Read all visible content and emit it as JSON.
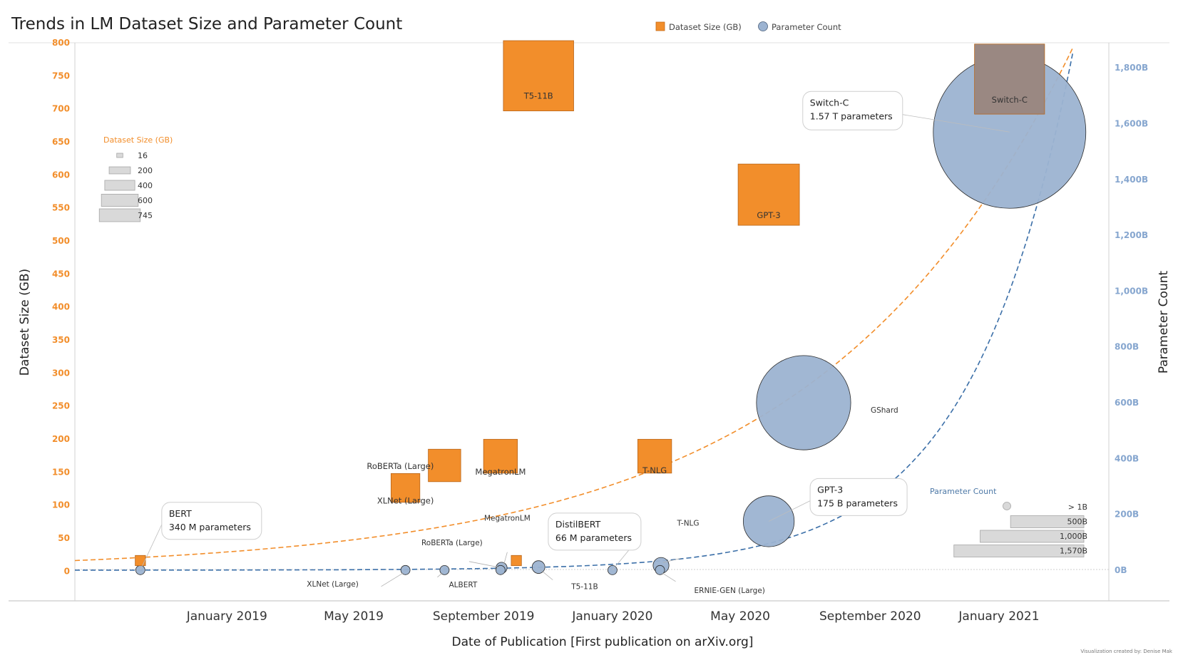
{
  "chart_data": {
    "type": "scatter",
    "title": "Trends in LM Dataset Size and Parameter Count",
    "xlabel": "Date of Publication [First publication on arXiv.org]",
    "ylabel_left": "Dataset Size (GB)",
    "ylabel_right": "Parameter Count",
    "x_ticks": [
      "January 2019",
      "May 2019",
      "September 2019",
      "January 2020",
      "May 2020",
      "September 2020",
      "January 2021"
    ],
    "x_tick_dates": [
      "2019-01-01",
      "2019-05-01",
      "2019-09-01",
      "2020-01-01",
      "2020-05-01",
      "2020-09-01",
      "2021-01-01"
    ],
    "x_range": [
      "2018-08-10",
      "2021-04-15"
    ],
    "left_ticks": [
      "0",
      "50",
      "100",
      "150",
      "200",
      "250",
      "300",
      "350",
      "400",
      "450",
      "500",
      "550",
      "600",
      "650",
      "700",
      "750",
      "800"
    ],
    "left_range": [
      -45,
      800
    ],
    "right_ticks": [
      "0B",
      "200B",
      "400B",
      "600B",
      "800B",
      "1,000B",
      "1,200B",
      "1,400B",
      "1,600B",
      "1,800B"
    ],
    "right_range": [
      -110,
      1890
    ],
    "grid": false,
    "legend": {
      "position": "top-center",
      "items": [
        {
          "name": "Dataset Size (GB)",
          "color": "#f28e2b",
          "shape": "square"
        },
        {
          "name": "Parameter Count",
          "color": "#9cb3d1",
          "shape": "circle"
        }
      ]
    },
    "colors": {
      "dataset": "#f28e2b",
      "params": "#9cb3d1",
      "trend_dataset": "#f28e2b",
      "trend_params": "#3b6fa8"
    },
    "series": [
      {
        "name": "Dataset Size (GB)",
        "points": [
          {
            "model": "BERT",
            "date": "2018-10-11",
            "value": 16,
            "label": ""
          },
          {
            "model": "XLNet (Large)",
            "date": "2019-06-19",
            "value": 126,
            "label": "XLNet (Large)"
          },
          {
            "model": "RoBERTa (Large)",
            "date": "2019-07-26",
            "value": 160,
            "label": "RoBERTa (Large)"
          },
          {
            "model": "MegatronLM",
            "date": "2019-09-17",
            "value": 174,
            "label": "MegatronLM"
          },
          {
            "model": "T5-11B",
            "date": "2019-10-23",
            "value": 750,
            "label": "T5-11B"
          },
          {
            "model": "DistilBERT",
            "date": "2019-10-02",
            "value": 16,
            "label": ""
          },
          {
            "model": "T-NLG",
            "date": "2020-02-10",
            "value": 174,
            "label": "T-NLG"
          },
          {
            "model": "GPT-3",
            "date": "2020-05-28",
            "value": 570,
            "label": "GPT-3"
          },
          {
            "model": "Switch-C",
            "date": "2021-01-11",
            "value": 745,
            "label": "Switch-C"
          }
        ]
      },
      {
        "name": "Parameter Count",
        "points": [
          {
            "model": "BERT",
            "date": "2018-10-11",
            "value": 0.34,
            "label": ""
          },
          {
            "model": "XLNet (Large)",
            "date": "2019-06-19",
            "value": 0.34,
            "label": "XLNet (Large)"
          },
          {
            "model": "ALBERT",
            "date": "2019-07-26",
            "value": 0.235,
            "label": "ALBERT"
          },
          {
            "model": "RoBERTa (Large)",
            "date": "2019-09-17",
            "value": 0.355,
            "label": "RoBERTa (Large)"
          },
          {
            "model": "MegatronLM",
            "date": "2019-09-18",
            "value": 8.3,
            "label": "MegatronLM"
          },
          {
            "model": "T5-11B",
            "date": "2019-10-23",
            "value": 11,
            "label": "T5-11B"
          },
          {
            "model": "DistilBERT",
            "date": "2020-01-01",
            "value": 0.066,
            "label": ""
          },
          {
            "model": "ERNIE-GEN (Large)",
            "date": "2020-02-15",
            "value": 0.34,
            "label": "ERNIE-GEN (Large)"
          },
          {
            "model": "T-NLG",
            "date": "2020-02-16",
            "value": 17,
            "label": "T-NLG"
          },
          {
            "model": "GPT-3",
            "date": "2020-05-28",
            "value": 175,
            "label": ""
          },
          {
            "model": "GShard",
            "date": "2020-06-30",
            "value": 600,
            "label": "GShard"
          },
          {
            "model": "Switch-C",
            "date": "2021-01-11",
            "value": 1570,
            "label": ""
          }
        ]
      }
    ],
    "callouts": [
      {
        "line1": "BERT",
        "line2": "340 M parameters"
      },
      {
        "line1": "DistilBERT",
        "line2": "66 M parameters"
      },
      {
        "line1": "GPT-3",
        "line2": "175 B parameters"
      },
      {
        "line1": "Switch-C",
        "line2": "1.57 T parameters"
      }
    ],
    "size_legend_dataset": {
      "title": "Dataset Size (GB)",
      "items": [
        "16",
        "200",
        "400",
        "600",
        "745"
      ],
      "values": [
        16,
        200,
        400,
        600,
        745
      ]
    },
    "size_legend_params": {
      "title": "Parameter Count",
      "items": [
        "> 1B",
        "500B",
        "1,000B",
        "1,570B"
      ],
      "values": [
        1,
        500,
        1000,
        1570
      ]
    },
    "credit": "Visualization created by: Denise Mak"
  }
}
